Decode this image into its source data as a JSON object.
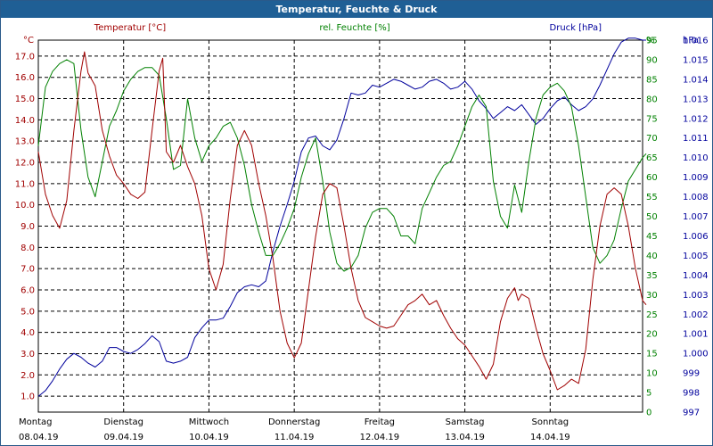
{
  "window": {
    "title": "Temperatur, Feuchte & Druck"
  },
  "chart_data": {
    "type": "line",
    "title": "Temperatur, Feuchte & Druck",
    "grid": true,
    "colors": {
      "temperature": "#a00000",
      "humidity": "#008000",
      "pressure": "#00009c",
      "grid": "#000000"
    },
    "x_ticks": [
      {
        "day": "Montag",
        "date": "08.04.19",
        "x": 0
      },
      {
        "day": "Dienstag",
        "date": "09.04.19",
        "x": 24
      },
      {
        "day": "Mittwoch",
        "date": "10.04.19",
        "x": 48
      },
      {
        "day": "Donnerstag",
        "date": "11.04.19",
        "x": 72
      },
      {
        "day": "Freitag",
        "date": "12.04.19",
        "x": 96
      },
      {
        "day": "Samstag",
        "date": "13.04.19",
        "x": 120
      },
      {
        "day": "Sonntag",
        "date": "14.04.19",
        "x": 144
      }
    ],
    "xlim": [
      0,
      170
    ],
    "axes": {
      "temperature": {
        "label": "Temperatur [°C]",
        "unit": "°C",
        "ylim": [
          0.25,
          17.75
        ],
        "ticks": [
          "1.0",
          "2.0",
          "3.0",
          "4.0",
          "5.0",
          "6.0",
          "7.0",
          "8.0",
          "9.0",
          "10.0",
          "11.0",
          "12.0",
          "13.0",
          "14.0",
          "15.0",
          "16.0",
          "17.0"
        ]
      },
      "humidity": {
        "label": "rel. Feuchte [%]",
        "unit": "%",
        "ylim": [
          0,
          95
        ],
        "ticks": [
          "0",
          "5",
          "10",
          "15",
          "20",
          "25",
          "30",
          "35",
          "40",
          "45",
          "50",
          "55",
          "60",
          "65",
          "70",
          "75",
          "80",
          "85",
          "90",
          "95"
        ]
      },
      "pressure": {
        "label": "Druck [hPa]",
        "unit": "hPa",
        "ylim": [
          997,
          1016
        ],
        "ticks": [
          "997",
          "998",
          "999",
          "1.000",
          "1.001",
          "1.002",
          "1.003",
          "1.004",
          "1.005",
          "1.006",
          "1.007",
          "1.008",
          "1.009",
          "1.010",
          "1.011",
          "1.012",
          "1.013",
          "1.014",
          "1.015",
          "1.016"
        ]
      }
    },
    "series": [
      {
        "name": "Temperatur [°C]",
        "axis": "temperature",
        "points": [
          [
            0,
            12.5
          ],
          [
            2,
            10.5
          ],
          [
            4,
            9.5
          ],
          [
            6,
            8.9
          ],
          [
            8,
            10.2
          ],
          [
            10,
            13.5
          ],
          [
            12,
            16.3
          ],
          [
            13,
            17.2
          ],
          [
            14,
            16.2
          ],
          [
            16,
            15.6
          ],
          [
            18,
            13.5
          ],
          [
            20,
            12.3
          ],
          [
            22,
            11.4
          ],
          [
            24,
            11.0
          ],
          [
            26,
            10.5
          ],
          [
            28,
            10.3
          ],
          [
            30,
            10.6
          ],
          [
            32,
            13.5
          ],
          [
            34,
            16.3
          ],
          [
            35,
            16.9
          ],
          [
            36,
            12.5
          ],
          [
            38,
            12.0
          ],
          [
            40,
            12.8
          ],
          [
            42,
            11.8
          ],
          [
            44,
            11.0
          ],
          [
            46,
            9.5
          ],
          [
            48,
            7.0
          ],
          [
            50,
            6.0
          ],
          [
            52,
            7.2
          ],
          [
            54,
            10.3
          ],
          [
            56,
            12.8
          ],
          [
            58,
            13.5
          ],
          [
            60,
            12.8
          ],
          [
            62,
            11.0
          ],
          [
            64,
            9.5
          ],
          [
            66,
            7.5
          ],
          [
            68,
            5.0
          ],
          [
            70,
            3.5
          ],
          [
            72,
            2.8
          ],
          [
            74,
            3.5
          ],
          [
            76,
            6.0
          ],
          [
            78,
            8.5
          ],
          [
            80,
            10.5
          ],
          [
            82,
            11.0
          ],
          [
            84,
            10.8
          ],
          [
            86,
            9.0
          ],
          [
            88,
            7.0
          ],
          [
            90,
            5.5
          ],
          [
            92,
            4.7
          ],
          [
            94,
            4.5
          ],
          [
            96,
            4.3
          ],
          [
            98,
            4.2
          ],
          [
            100,
            4.3
          ],
          [
            102,
            4.8
          ],
          [
            104,
            5.3
          ],
          [
            106,
            5.5
          ],
          [
            108,
            5.8
          ],
          [
            110,
            5.3
          ],
          [
            112,
            5.5
          ],
          [
            114,
            4.8
          ],
          [
            116,
            4.2
          ],
          [
            118,
            3.7
          ],
          [
            120,
            3.4
          ],
          [
            122,
            2.9
          ],
          [
            124,
            2.4
          ],
          [
            126,
            1.8
          ],
          [
            128,
            2.5
          ],
          [
            130,
            4.5
          ],
          [
            132,
            5.6
          ],
          [
            134,
            6.1
          ],
          [
            135,
            5.5
          ],
          [
            136,
            5.8
          ],
          [
            138,
            5.6
          ],
          [
            140,
            4.2
          ],
          [
            142,
            3.0
          ],
          [
            144,
            2.2
          ],
          [
            146,
            1.3
          ],
          [
            148,
            1.5
          ],
          [
            150,
            1.8
          ],
          [
            152,
            1.6
          ],
          [
            154,
            3.2
          ],
          [
            156,
            6.5
          ],
          [
            158,
            9.0
          ],
          [
            160,
            10.5
          ],
          [
            162,
            10.8
          ],
          [
            164,
            10.5
          ],
          [
            166,
            9.0
          ],
          [
            168,
            7.0
          ],
          [
            170,
            5.5
          ],
          [
            171,
            5.3
          ]
        ]
      },
      {
        "name": "rel. Feuchte [%]",
        "axis": "humidity",
        "points": [
          [
            0,
            68
          ],
          [
            2,
            83
          ],
          [
            4,
            87
          ],
          [
            6,
            89
          ],
          [
            8,
            90
          ],
          [
            10,
            89
          ],
          [
            12,
            72
          ],
          [
            14,
            60
          ],
          [
            16,
            55
          ],
          [
            18,
            64
          ],
          [
            20,
            73
          ],
          [
            22,
            77
          ],
          [
            24,
            82
          ],
          [
            26,
            85
          ],
          [
            28,
            87
          ],
          [
            30,
            88
          ],
          [
            32,
            88
          ],
          [
            34,
            86
          ],
          [
            36,
            75
          ],
          [
            38,
            62
          ],
          [
            40,
            63
          ],
          [
            42,
            80
          ],
          [
            44,
            70
          ],
          [
            46,
            64
          ],
          [
            48,
            68
          ],
          [
            50,
            70
          ],
          [
            52,
            73
          ],
          [
            54,
            74
          ],
          [
            56,
            70
          ],
          [
            58,
            63
          ],
          [
            60,
            53
          ],
          [
            62,
            46
          ],
          [
            64,
            40
          ],
          [
            66,
            40
          ],
          [
            68,
            43
          ],
          [
            70,
            47
          ],
          [
            72,
            52
          ],
          [
            74,
            60
          ],
          [
            76,
            66
          ],
          [
            78,
            70
          ],
          [
            80,
            59
          ],
          [
            82,
            46
          ],
          [
            84,
            38
          ],
          [
            86,
            36
          ],
          [
            88,
            37
          ],
          [
            90,
            40
          ],
          [
            92,
            47
          ],
          [
            94,
            51
          ],
          [
            96,
            52
          ],
          [
            98,
            52
          ],
          [
            100,
            50
          ],
          [
            102,
            45
          ],
          [
            104,
            45
          ],
          [
            106,
            43
          ],
          [
            108,
            52
          ],
          [
            110,
            56
          ],
          [
            112,
            60
          ],
          [
            114,
            63
          ],
          [
            116,
            64
          ],
          [
            118,
            68
          ],
          [
            120,
            73
          ],
          [
            122,
            78
          ],
          [
            124,
            81
          ],
          [
            126,
            78
          ],
          [
            128,
            59
          ],
          [
            130,
            50
          ],
          [
            132,
            47
          ],
          [
            134,
            58
          ],
          [
            136,
            51
          ],
          [
            138,
            64
          ],
          [
            140,
            75
          ],
          [
            142,
            81
          ],
          [
            144,
            83
          ],
          [
            146,
            84
          ],
          [
            148,
            82
          ],
          [
            150,
            78
          ],
          [
            152,
            68
          ],
          [
            154,
            55
          ],
          [
            156,
            42
          ],
          [
            158,
            38
          ],
          [
            160,
            40
          ],
          [
            162,
            44
          ],
          [
            164,
            52
          ],
          [
            166,
            59
          ],
          [
            168,
            62
          ],
          [
            170,
            65
          ],
          [
            171,
            66
          ]
        ]
      },
      {
        "name": "Druck [hPa]",
        "axis": "pressure",
        "points": [
          [
            0,
            997.8
          ],
          [
            2,
            998.1
          ],
          [
            4,
            998.6
          ],
          [
            6,
            999.2
          ],
          [
            8,
            999.7
          ],
          [
            10,
            1000.0
          ],
          [
            12,
            999.8
          ],
          [
            14,
            999.5
          ],
          [
            16,
            999.3
          ],
          [
            18,
            999.6
          ],
          [
            20,
            1000.3
          ],
          [
            22,
            1000.3
          ],
          [
            24,
            1000.1
          ],
          [
            26,
            1000.0
          ],
          [
            28,
            1000.2
          ],
          [
            30,
            1000.5
          ],
          [
            32,
            1000.9
          ],
          [
            34,
            1000.6
          ],
          [
            36,
            999.6
          ],
          [
            38,
            999.5
          ],
          [
            40,
            999.6
          ],
          [
            42,
            999.8
          ],
          [
            44,
            1000.8
          ],
          [
            46,
            1001.3
          ],
          [
            48,
            1001.7
          ],
          [
            50,
            1001.7
          ],
          [
            52,
            1001.8
          ],
          [
            54,
            1002.4
          ],
          [
            56,
            1003.1
          ],
          [
            58,
            1003.4
          ],
          [
            60,
            1003.5
          ],
          [
            62,
            1003.4
          ],
          [
            64,
            1003.7
          ],
          [
            66,
            1005.2
          ],
          [
            68,
            1006.5
          ],
          [
            70,
            1007.6
          ],
          [
            72,
            1008.8
          ],
          [
            74,
            1010.3
          ],
          [
            76,
            1011.0
          ],
          [
            78,
            1011.1
          ],
          [
            80,
            1010.6
          ],
          [
            82,
            1010.4
          ],
          [
            84,
            1010.9
          ],
          [
            86,
            1012.0
          ],
          [
            88,
            1013.3
          ],
          [
            90,
            1013.2
          ],
          [
            92,
            1013.3
          ],
          [
            94,
            1013.7
          ],
          [
            96,
            1013.6
          ],
          [
            98,
            1013.8
          ],
          [
            100,
            1014.0
          ],
          [
            102,
            1013.9
          ],
          [
            104,
            1013.7
          ],
          [
            106,
            1013.5
          ],
          [
            108,
            1013.6
          ],
          [
            110,
            1013.9
          ],
          [
            112,
            1014.0
          ],
          [
            114,
            1013.8
          ],
          [
            116,
            1013.5
          ],
          [
            118,
            1013.6
          ],
          [
            120,
            1013.9
          ],
          [
            122,
            1013.5
          ],
          [
            124,
            1012.9
          ],
          [
            126,
            1012.5
          ],
          [
            128,
            1012.0
          ],
          [
            130,
            1012.3
          ],
          [
            132,
            1012.6
          ],
          [
            134,
            1012.4
          ],
          [
            136,
            1012.7
          ],
          [
            138,
            1012.2
          ],
          [
            140,
            1011.7
          ],
          [
            142,
            1012.0
          ],
          [
            144,
            1012.5
          ],
          [
            146,
            1012.9
          ],
          [
            148,
            1013.1
          ],
          [
            150,
            1012.7
          ],
          [
            152,
            1012.4
          ],
          [
            154,
            1012.6
          ],
          [
            156,
            1013.0
          ],
          [
            158,
            1013.7
          ],
          [
            160,
            1014.5
          ],
          [
            162,
            1015.3
          ],
          [
            164,
            1015.9
          ],
          [
            166,
            1016.1
          ],
          [
            168,
            1016.1
          ],
          [
            170,
            1016.0
          ],
          [
            171,
            1016.0
          ]
        ]
      }
    ]
  }
}
